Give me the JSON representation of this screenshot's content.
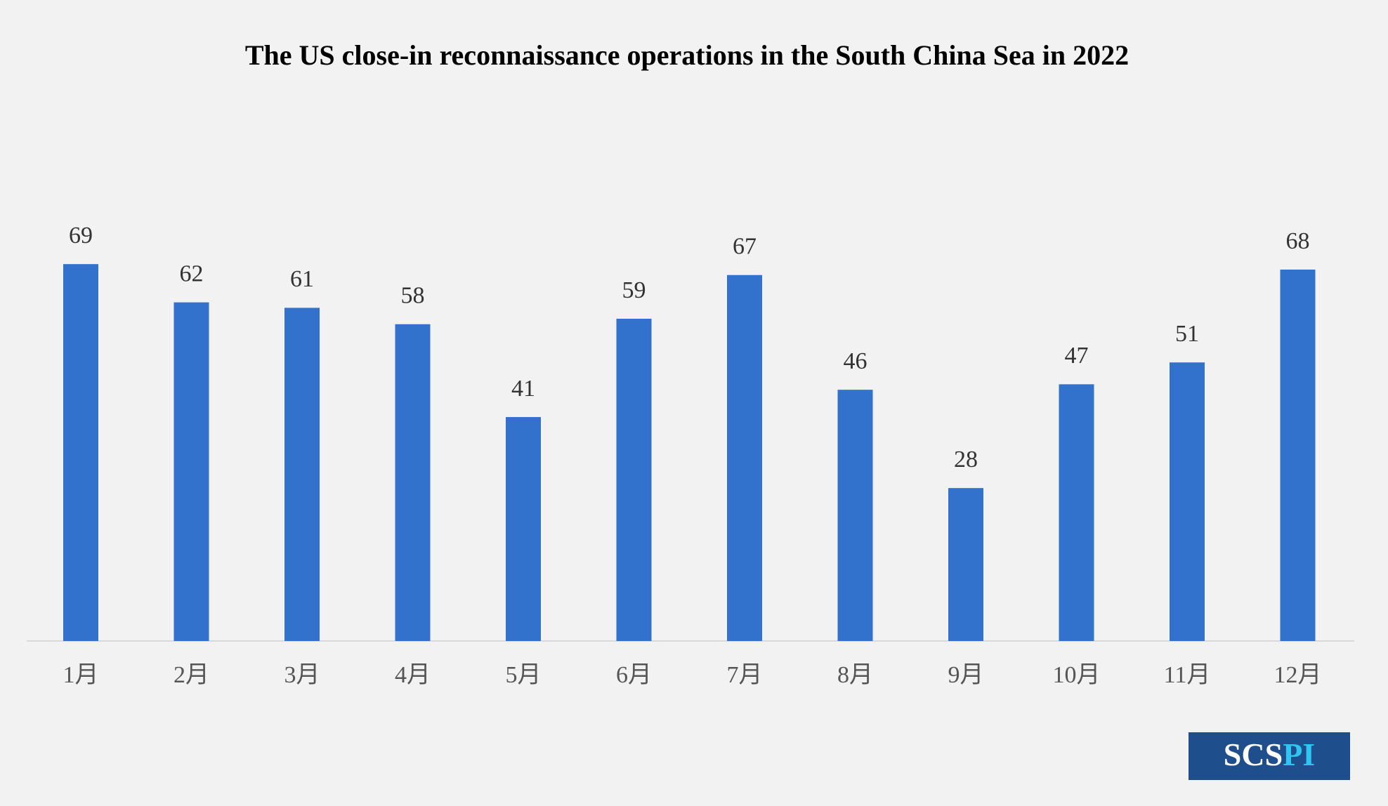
{
  "chart_data": {
    "type": "bar",
    "title": "The US  close-in reconnaissance operations in the South China Sea in 2022",
    "categories": [
      "1月",
      "2月",
      "3月",
      "4月",
      "5月",
      "6月",
      "7月",
      "8月",
      "9月",
      "10月",
      "11月",
      "12月"
    ],
    "values": [
      69,
      62,
      61,
      58,
      41,
      59,
      67,
      46,
      28,
      47,
      51,
      68
    ],
    "color": "#3372cc"
  },
  "logo": {
    "part1": "SCS",
    "part2": "PI"
  }
}
